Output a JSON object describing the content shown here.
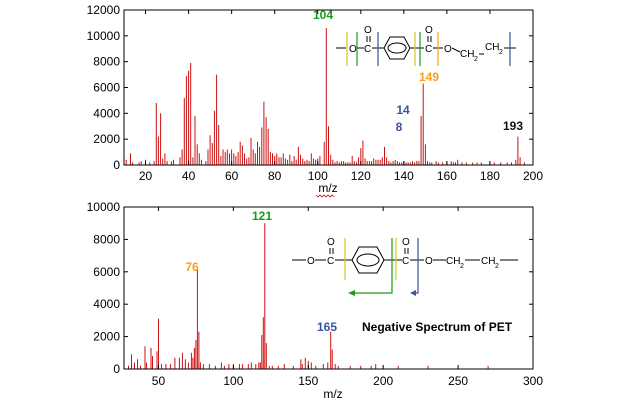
{
  "colors": {
    "spike": "#cc1111",
    "green": "#1a9a1a",
    "orange": "#f5a020",
    "blue": "#3a55a0",
    "black": "#111111",
    "yellow": "#d8c81a",
    "axis": "#000000"
  },
  "chart_data": [
    {
      "type": "bar",
      "xlabel": "m/z",
      "xlim": [
        10,
        200
      ],
      "ylim": [
        0,
        12000
      ],
      "xticks": [
        20,
        40,
        60,
        80,
        100,
        120,
        140,
        160,
        180,
        200
      ],
      "yticks": [
        0,
        2000,
        4000,
        6000,
        8000,
        10000,
        12000
      ],
      "labeled_peaks": [
        {
          "mz": 104,
          "intensity": 10600,
          "label": "104",
          "color": "green"
        },
        {
          "mz": 149,
          "intensity": 6300,
          "label": "149",
          "color": "orange"
        },
        {
          "mz": 148,
          "intensity": 3800,
          "label": "14",
          "label2": "8",
          "color": "blue"
        },
        {
          "mz": 193,
          "intensity": 2200,
          "label": "193",
          "color": "black"
        }
      ],
      "peaks": [
        [
          11,
          400
        ],
        [
          13,
          900
        ],
        [
          14,
          200
        ],
        [
          17,
          200
        ],
        [
          18,
          300
        ],
        [
          20,
          400
        ],
        [
          22,
          200
        ],
        [
          24,
          300
        ],
        [
          25,
          4800
        ],
        [
          26,
          2200
        ],
        [
          27,
          4000
        ],
        [
          28,
          500
        ],
        [
          29,
          900
        ],
        [
          30,
          300
        ],
        [
          32,
          300
        ],
        [
          33,
          400
        ],
        [
          36,
          600
        ],
        [
          37,
          1200
        ],
        [
          38,
          5200
        ],
        [
          39,
          6900
        ],
        [
          40,
          7300
        ],
        [
          41,
          7900
        ],
        [
          42,
          600
        ],
        [
          43,
          3800
        ],
        [
          44,
          1600
        ],
        [
          45,
          900
        ],
        [
          46,
          400
        ],
        [
          48,
          300
        ],
        [
          49,
          1200
        ],
        [
          50,
          2300
        ],
        [
          51,
          1700
        ],
        [
          52,
          4200
        ],
        [
          53,
          7000
        ],
        [
          54,
          3100
        ],
        [
          55,
          700
        ],
        [
          56,
          1200
        ],
        [
          57,
          1000
        ],
        [
          58,
          1200
        ],
        [
          59,
          900
        ],
        [
          60,
          1200
        ],
        [
          61,
          900
        ],
        [
          62,
          700
        ],
        [
          63,
          1000
        ],
        [
          64,
          1800
        ],
        [
          65,
          1500
        ],
        [
          66,
          900
        ],
        [
          67,
          500
        ],
        [
          68,
          600
        ],
        [
          69,
          2100
        ],
        [
          70,
          1200
        ],
        [
          71,
          900
        ],
        [
          72,
          1800
        ],
        [
          73,
          1400
        ],
        [
          74,
          2900
        ],
        [
          75,
          4900
        ],
        [
          76,
          3700
        ],
        [
          77,
          2800
        ],
        [
          78,
          1000
        ],
        [
          79,
          900
        ],
        [
          80,
          700
        ],
        [
          81,
          900
        ],
        [
          82,
          600
        ],
        [
          83,
          600
        ],
        [
          84,
          900
        ],
        [
          85,
          500
        ],
        [
          86,
          400
        ],
        [
          87,
          800
        ],
        [
          88,
          300
        ],
        [
          89,
          700
        ],
        [
          90,
          400
        ],
        [
          91,
          1400
        ],
        [
          92,
          800
        ],
        [
          93,
          500
        ],
        [
          94,
          300
        ],
        [
          95,
          400
        ],
        [
          96,
          300
        ],
        [
          97,
          900
        ],
        [
          98,
          500
        ],
        [
          99,
          400
        ],
        [
          100,
          500
        ],
        [
          101,
          700
        ],
        [
          103,
          1800
        ],
        [
          104,
          10600
        ],
        [
          105,
          3000
        ],
        [
          106,
          800
        ],
        [
          107,
          400
        ],
        [
          108,
          200
        ],
        [
          109,
          300
        ],
        [
          110,
          200
        ],
        [
          111,
          300
        ],
        [
          112,
          300
        ],
        [
          113,
          200
        ],
        [
          114,
          200
        ],
        [
          115,
          200
        ],
        [
          116,
          700
        ],
        [
          117,
          300
        ],
        [
          118,
          200
        ],
        [
          119,
          600
        ],
        [
          120,
          1300
        ],
        [
          121,
          1900
        ],
        [
          122,
          500
        ],
        [
          123,
          300
        ],
        [
          124,
          300
        ],
        [
          125,
          300
        ],
        [
          126,
          500
        ],
        [
          127,
          400
        ],
        [
          128,
          400
        ],
        [
          129,
          400
        ],
        [
          130,
          600
        ],
        [
          131,
          1400
        ],
        [
          132,
          600
        ],
        [
          133,
          300
        ],
        [
          134,
          200
        ],
        [
          135,
          300
        ],
        [
          136,
          400
        ],
        [
          137,
          300
        ],
        [
          138,
          200
        ],
        [
          139,
          200
        ],
        [
          140,
          300
        ],
        [
          141,
          200
        ],
        [
          142,
          200
        ],
        [
          143,
          200
        ],
        [
          144,
          300
        ],
        [
          145,
          200
        ],
        [
          146,
          300
        ],
        [
          147,
          300
        ],
        [
          148,
          3800
        ],
        [
          149,
          6300
        ],
        [
          150,
          1600
        ],
        [
          151,
          300
        ],
        [
          152,
          200
        ],
        [
          153,
          200
        ],
        [
          155,
          300
        ],
        [
          156,
          200
        ],
        [
          158,
          200
        ],
        [
          160,
          200
        ],
        [
          162,
          300
        ],
        [
          163,
          200
        ],
        [
          164,
          200
        ],
        [
          165,
          400
        ],
        [
          167,
          200
        ],
        [
          169,
          200
        ],
        [
          172,
          200
        ],
        [
          174,
          200
        ],
        [
          176,
          200
        ],
        [
          180,
          200
        ],
        [
          182,
          200
        ],
        [
          185,
          200
        ],
        [
          188,
          200
        ],
        [
          190,
          200
        ],
        [
          192,
          400
        ],
        [
          193,
          2200
        ],
        [
          194,
          600
        ],
        [
          196,
          200
        ]
      ]
    },
    {
      "type": "bar",
      "xlabel": "m/z",
      "xlim": [
        27,
        300
      ],
      "ylim": [
        0,
        10000
      ],
      "xticks": [
        50,
        100,
        150,
        200,
        250,
        300
      ],
      "yticks": [
        0,
        2000,
        4000,
        6000,
        8000,
        10000
      ],
      "labeled_peaks": [
        {
          "mz": 121,
          "intensity": 9000,
          "label": "121",
          "color": "green"
        },
        {
          "mz": 76,
          "intensity": 6300,
          "label": "76",
          "color": "orange"
        },
        {
          "mz": 165,
          "intensity": 2300,
          "label": "165",
          "color": "blue"
        }
      ],
      "annotation": "Negative Spectrum of PET",
      "peaks": [
        [
          30,
          200
        ],
        [
          32,
          900
        ],
        [
          34,
          400
        ],
        [
          36,
          600
        ],
        [
          38,
          200
        ],
        [
          41,
          1400
        ],
        [
          42,
          400
        ],
        [
          45,
          1300
        ],
        [
          46,
          800
        ],
        [
          49,
          1100
        ],
        [
          50,
          3100
        ],
        [
          52,
          300
        ],
        [
          55,
          300
        ],
        [
          58,
          300
        ],
        [
          61,
          700
        ],
        [
          64,
          700
        ],
        [
          66,
          1000
        ],
        [
          68,
          600
        ],
        [
          70,
          400
        ],
        [
          72,
          1000
        ],
        [
          73,
          700
        ],
        [
          74,
          1300
        ],
        [
          75,
          1800
        ],
        [
          76,
          6300
        ],
        [
          77,
          2300
        ],
        [
          78,
          400
        ],
        [
          80,
          300
        ],
        [
          84,
          300
        ],
        [
          88,
          200
        ],
        [
          92,
          400
        ],
        [
          94,
          200
        ],
        [
          97,
          300
        ],
        [
          100,
          300
        ],
        [
          104,
          300
        ],
        [
          106,
          300
        ],
        [
          110,
          300
        ],
        [
          112,
          400
        ],
        [
          115,
          300
        ],
        [
          117,
          400
        ],
        [
          118,
          400
        ],
        [
          119,
          2100
        ],
        [
          120,
          3200
        ],
        [
          121,
          9000
        ],
        [
          122,
          1600
        ],
        [
          124,
          200
        ],
        [
          126,
          200
        ],
        [
          130,
          200
        ],
        [
          134,
          300
        ],
        [
          140,
          200
        ],
        [
          145,
          600
        ],
        [
          146,
          300
        ],
        [
          148,
          700
        ],
        [
          150,
          500
        ],
        [
          152,
          400
        ],
        [
          155,
          200
        ],
        [
          160,
          300
        ],
        [
          163,
          400
        ],
        [
          165,
          2300
        ],
        [
          166,
          1200
        ],
        [
          168,
          300
        ],
        [
          170,
          200
        ],
        [
          178,
          200
        ],
        [
          185,
          200
        ],
        [
          192,
          200
        ],
        [
          195,
          300
        ],
        [
          210,
          200
        ],
        [
          230,
          200
        ],
        [
          270,
          200
        ]
      ]
    }
  ]
}
